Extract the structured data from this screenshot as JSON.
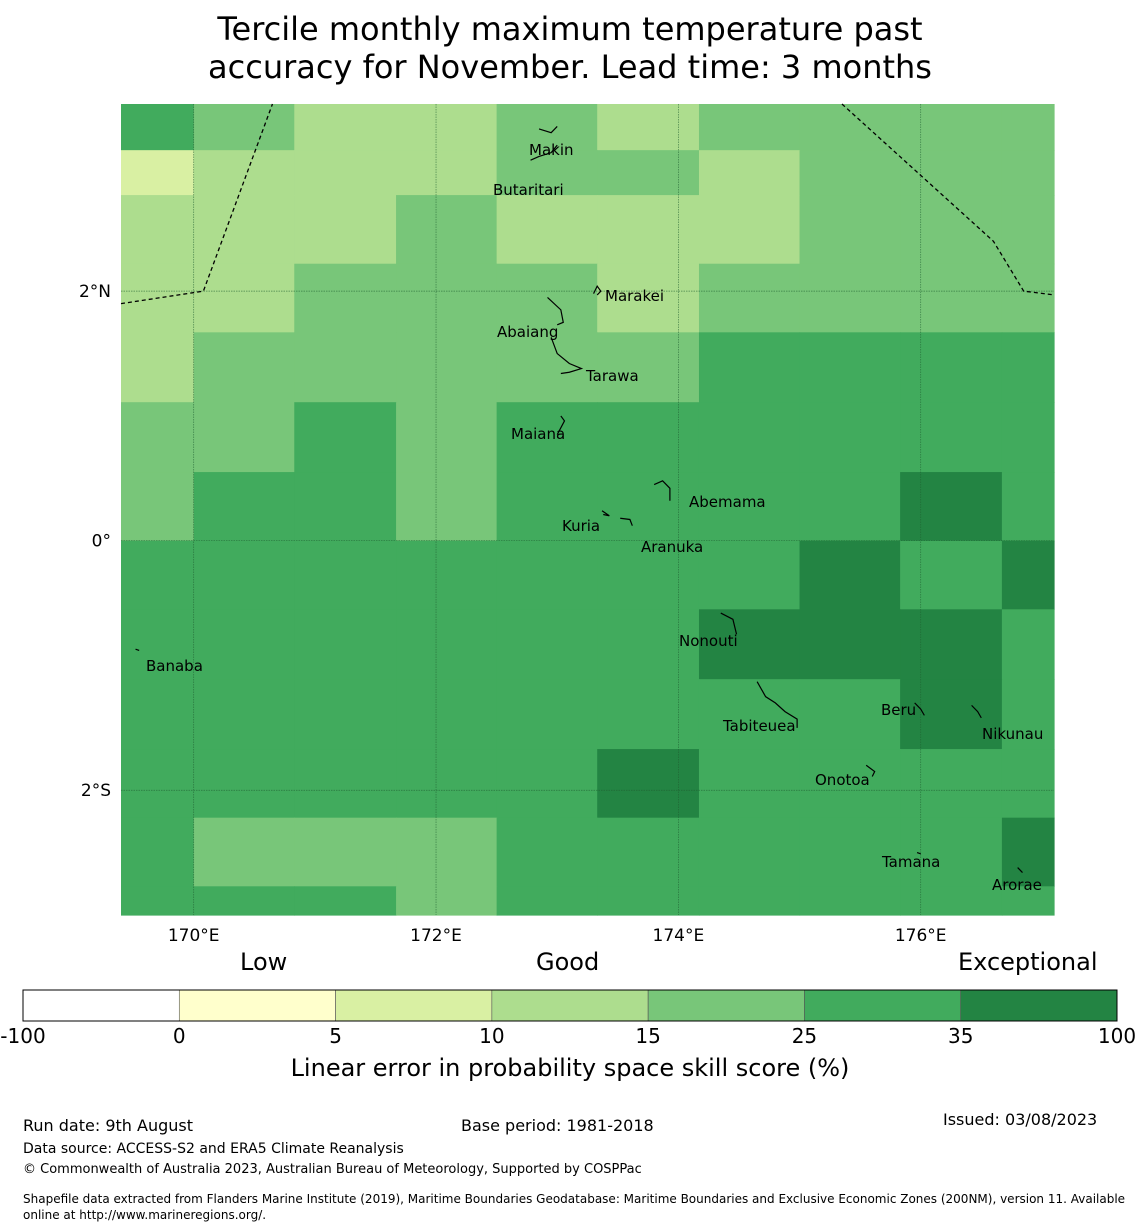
{
  "title_line1": "Tercile monthly maximum temperature past",
  "title_line2": "accuracy for November. Lead time: 3 months",
  "map": {
    "lon_range": [
      169.4,
      177.1
    ],
    "lat_range": [
      -3.0,
      3.5
    ],
    "lon_ticks": [
      {
        "value": 170,
        "label": "170°E"
      },
      {
        "value": 172,
        "label": "172°E"
      },
      {
        "value": 174,
        "label": "174°E"
      },
      {
        "value": 176,
        "label": "176°E"
      }
    ],
    "lat_ticks": [
      {
        "value": 2,
        "label": "2°N"
      },
      {
        "value": 0,
        "label": "0°"
      },
      {
        "value": -2,
        "label": "2°S"
      }
    ],
    "grid_lon_edges": [
      169.4,
      170.0,
      170.83,
      171.67,
      172.5,
      173.33,
      174.17,
      175.0,
      175.83,
      176.67,
      177.1
    ],
    "grid_lat_edges": [
      3.5,
      3.13,
      2.77,
      2.22,
      1.67,
      1.11,
      0.55,
      0.0,
      -0.55,
      -1.11,
      -1.67,
      -2.22,
      -2.77,
      -3.0
    ],
    "cell_classes": [
      [
        5,
        4,
        3,
        3,
        4,
        3,
        4,
        4,
        4,
        4
      ],
      [
        2,
        3,
        3,
        3,
        4,
        4,
        3,
        4,
        4,
        4
      ],
      [
        3,
        3,
        3,
        4,
        3,
        3,
        3,
        4,
        4,
        4
      ],
      [
        3,
        3,
        4,
        4,
        4,
        3,
        4,
        4,
        4,
        4
      ],
      [
        3,
        4,
        4,
        4,
        4,
        4,
        5,
        5,
        5,
        5
      ],
      [
        4,
        4,
        5,
        4,
        5,
        5,
        5,
        5,
        5,
        5
      ],
      [
        4,
        5,
        5,
        4,
        5,
        5,
        5,
        5,
        6,
        5
      ],
      [
        5,
        5,
        5,
        5,
        5,
        5,
        5,
        6,
        5,
        6
      ],
      [
        5,
        5,
        5,
        5,
        5,
        5,
        6,
        6,
        6,
        5
      ],
      [
        5,
        5,
        5,
        5,
        5,
        5,
        5,
        5,
        6,
        5
      ],
      [
        5,
        5,
        5,
        5,
        5,
        6,
        5,
        5,
        5,
        5
      ],
      [
        5,
        4,
        4,
        4,
        5,
        5,
        5,
        5,
        5,
        6
      ],
      [
        5,
        5,
        5,
        4,
        5,
        5,
        5,
        5,
        5,
        5
      ]
    ],
    "boundary_lines": [
      [
        [
          169.4,
          1.9
        ],
        [
          170.08,
          2.0
        ],
        [
          170.65,
          3.5
        ]
      ],
      [
        [
          175.35,
          3.5
        ],
        [
          176.6,
          2.4
        ],
        [
          176.85,
          2.0
        ],
        [
          177.1,
          1.97
        ]
      ]
    ],
    "islands": [
      {
        "name": "Makin",
        "lon": 173.0,
        "lat": 3.32,
        "outline": [
          [
            172.85,
            3.3
          ],
          [
            172.95,
            3.27
          ],
          [
            173.0,
            3.32
          ]
        ]
      },
      {
        "name": "Butaritari",
        "lon": 172.78,
        "lat": 3.1,
        "outline": [
          [
            172.78,
            3.05
          ],
          [
            172.85,
            3.08
          ],
          [
            172.95,
            3.11
          ],
          [
            173.0,
            3.17
          ]
        ]
      },
      {
        "name": "Marakei",
        "lon": 173.35,
        "lat": 2.0,
        "outline": [
          [
            173.3,
            1.98
          ],
          [
            173.33,
            2.04
          ],
          [
            173.36,
            2.0
          ],
          [
            173.33,
            1.97
          ]
        ]
      },
      {
        "name": "Abaiang",
        "lon": 173.0,
        "lat": 1.8,
        "outline": [
          [
            172.92,
            1.95
          ],
          [
            173.03,
            1.85
          ],
          [
            173.05,
            1.75
          ],
          [
            173.0,
            1.73
          ]
        ]
      },
      {
        "name": "Tarawa",
        "lon": 173.15,
        "lat": 1.4,
        "outline": [
          [
            172.95,
            1.63
          ],
          [
            173.0,
            1.5
          ],
          [
            173.1,
            1.42
          ],
          [
            173.2,
            1.38
          ],
          [
            173.1,
            1.35
          ],
          [
            173.03,
            1.34
          ]
        ]
      },
      {
        "name": "Maiana",
        "lon": 173.0,
        "lat": 0.95,
        "outline": [
          [
            173.03,
            1.0
          ],
          [
            173.06,
            0.96
          ],
          [
            173.0,
            0.85
          ]
        ]
      },
      {
        "name": "Abemama",
        "lon": 173.9,
        "lat": 0.4,
        "outline": [
          [
            173.8,
            0.45
          ],
          [
            173.87,
            0.48
          ],
          [
            173.93,
            0.42
          ],
          [
            173.93,
            0.32
          ]
        ]
      },
      {
        "name": "Kuria",
        "lon": 173.4,
        "lat": 0.23,
        "outline": [
          [
            173.37,
            0.24
          ],
          [
            173.43,
            0.2
          ],
          [
            173.38,
            0.21
          ]
        ]
      },
      {
        "name": "Aranuka",
        "lon": 173.6,
        "lat": 0.18,
        "outline": [
          [
            173.52,
            0.18
          ],
          [
            173.6,
            0.17
          ],
          [
            173.62,
            0.12
          ]
        ]
      },
      {
        "name": "Nonouti",
        "lon": 174.45,
        "lat": -0.65,
        "outline": [
          [
            174.35,
            -0.58
          ],
          [
            174.45,
            -0.63
          ],
          [
            174.48,
            -0.75
          ]
        ]
      },
      {
        "name": "Tabiteuea",
        "lon": 174.85,
        "lat": -1.35,
        "outline": [
          [
            174.65,
            -1.13
          ],
          [
            174.72,
            -1.25
          ],
          [
            174.8,
            -1.3
          ],
          [
            174.88,
            -1.37
          ],
          [
            174.98,
            -1.43
          ],
          [
            174.98,
            -1.5
          ]
        ]
      },
      {
        "name": "Beru",
        "lon": 175.98,
        "lat": -1.33,
        "outline": [
          [
            175.95,
            -1.3
          ],
          [
            176.0,
            -1.35
          ],
          [
            176.03,
            -1.4
          ]
        ]
      },
      {
        "name": "Nikunau",
        "lon": 176.45,
        "lat": -1.35,
        "outline": [
          [
            176.42,
            -1.32
          ],
          [
            176.47,
            -1.37
          ],
          [
            176.5,
            -1.42
          ]
        ]
      },
      {
        "name": "Onotoa",
        "lon": 175.55,
        "lat": -1.85,
        "outline": [
          [
            175.55,
            -1.8
          ],
          [
            175.62,
            -1.85
          ],
          [
            175.6,
            -1.89
          ]
        ]
      },
      {
        "name": "Tamana",
        "lon": 175.98,
        "lat": -2.5,
        "outline": [
          [
            175.97,
            -2.5
          ],
          [
            176.0,
            -2.51
          ]
        ]
      },
      {
        "name": "Arorae",
        "lon": 176.8,
        "lat": -2.64,
        "outline": [
          [
            176.8,
            -2.62
          ],
          [
            176.84,
            -2.66
          ]
        ]
      },
      {
        "name": "Banaba",
        "lon": 169.53,
        "lat": -0.88,
        "outline": [
          [
            169.52,
            -0.87
          ],
          [
            169.55,
            -0.88
          ]
        ]
      }
    ]
  },
  "colorbar": {
    "colors": [
      "#ffffff",
      "#ffffcc",
      "#d9f0a3",
      "#addd8e",
      "#78c679",
      "#41ab5d",
      "#238443"
    ],
    "ticks": [
      "-100",
      "0",
      "5",
      "10",
      "15",
      "25",
      "35",
      "100"
    ],
    "category_words": [
      "Low",
      "Good",
      "Exceptional"
    ],
    "label": "Linear error in probability space skill score (%)"
  },
  "footer": {
    "run_date": "Run date: 9th August",
    "base_period": "Base period: 1981-2018",
    "issued": "Issued: 03/08/2023",
    "data_source": "Data source: ACCESS-S2 and ERA5 Climate Reanalysis",
    "copyright": "© Commonwealth of Australia 2023, Australian Bureau of Meteorology, Supported by COSPPac",
    "shapefile_line1": "Shapefile data extracted from Flanders Marine Institute (2019), Maritime Boundaries Geodatabase: Maritime Boundaries and Exclusive Economic Zones (200NM), version 11. Available",
    "shapefile_line2": "online at http://www.marineregions.org/."
  }
}
